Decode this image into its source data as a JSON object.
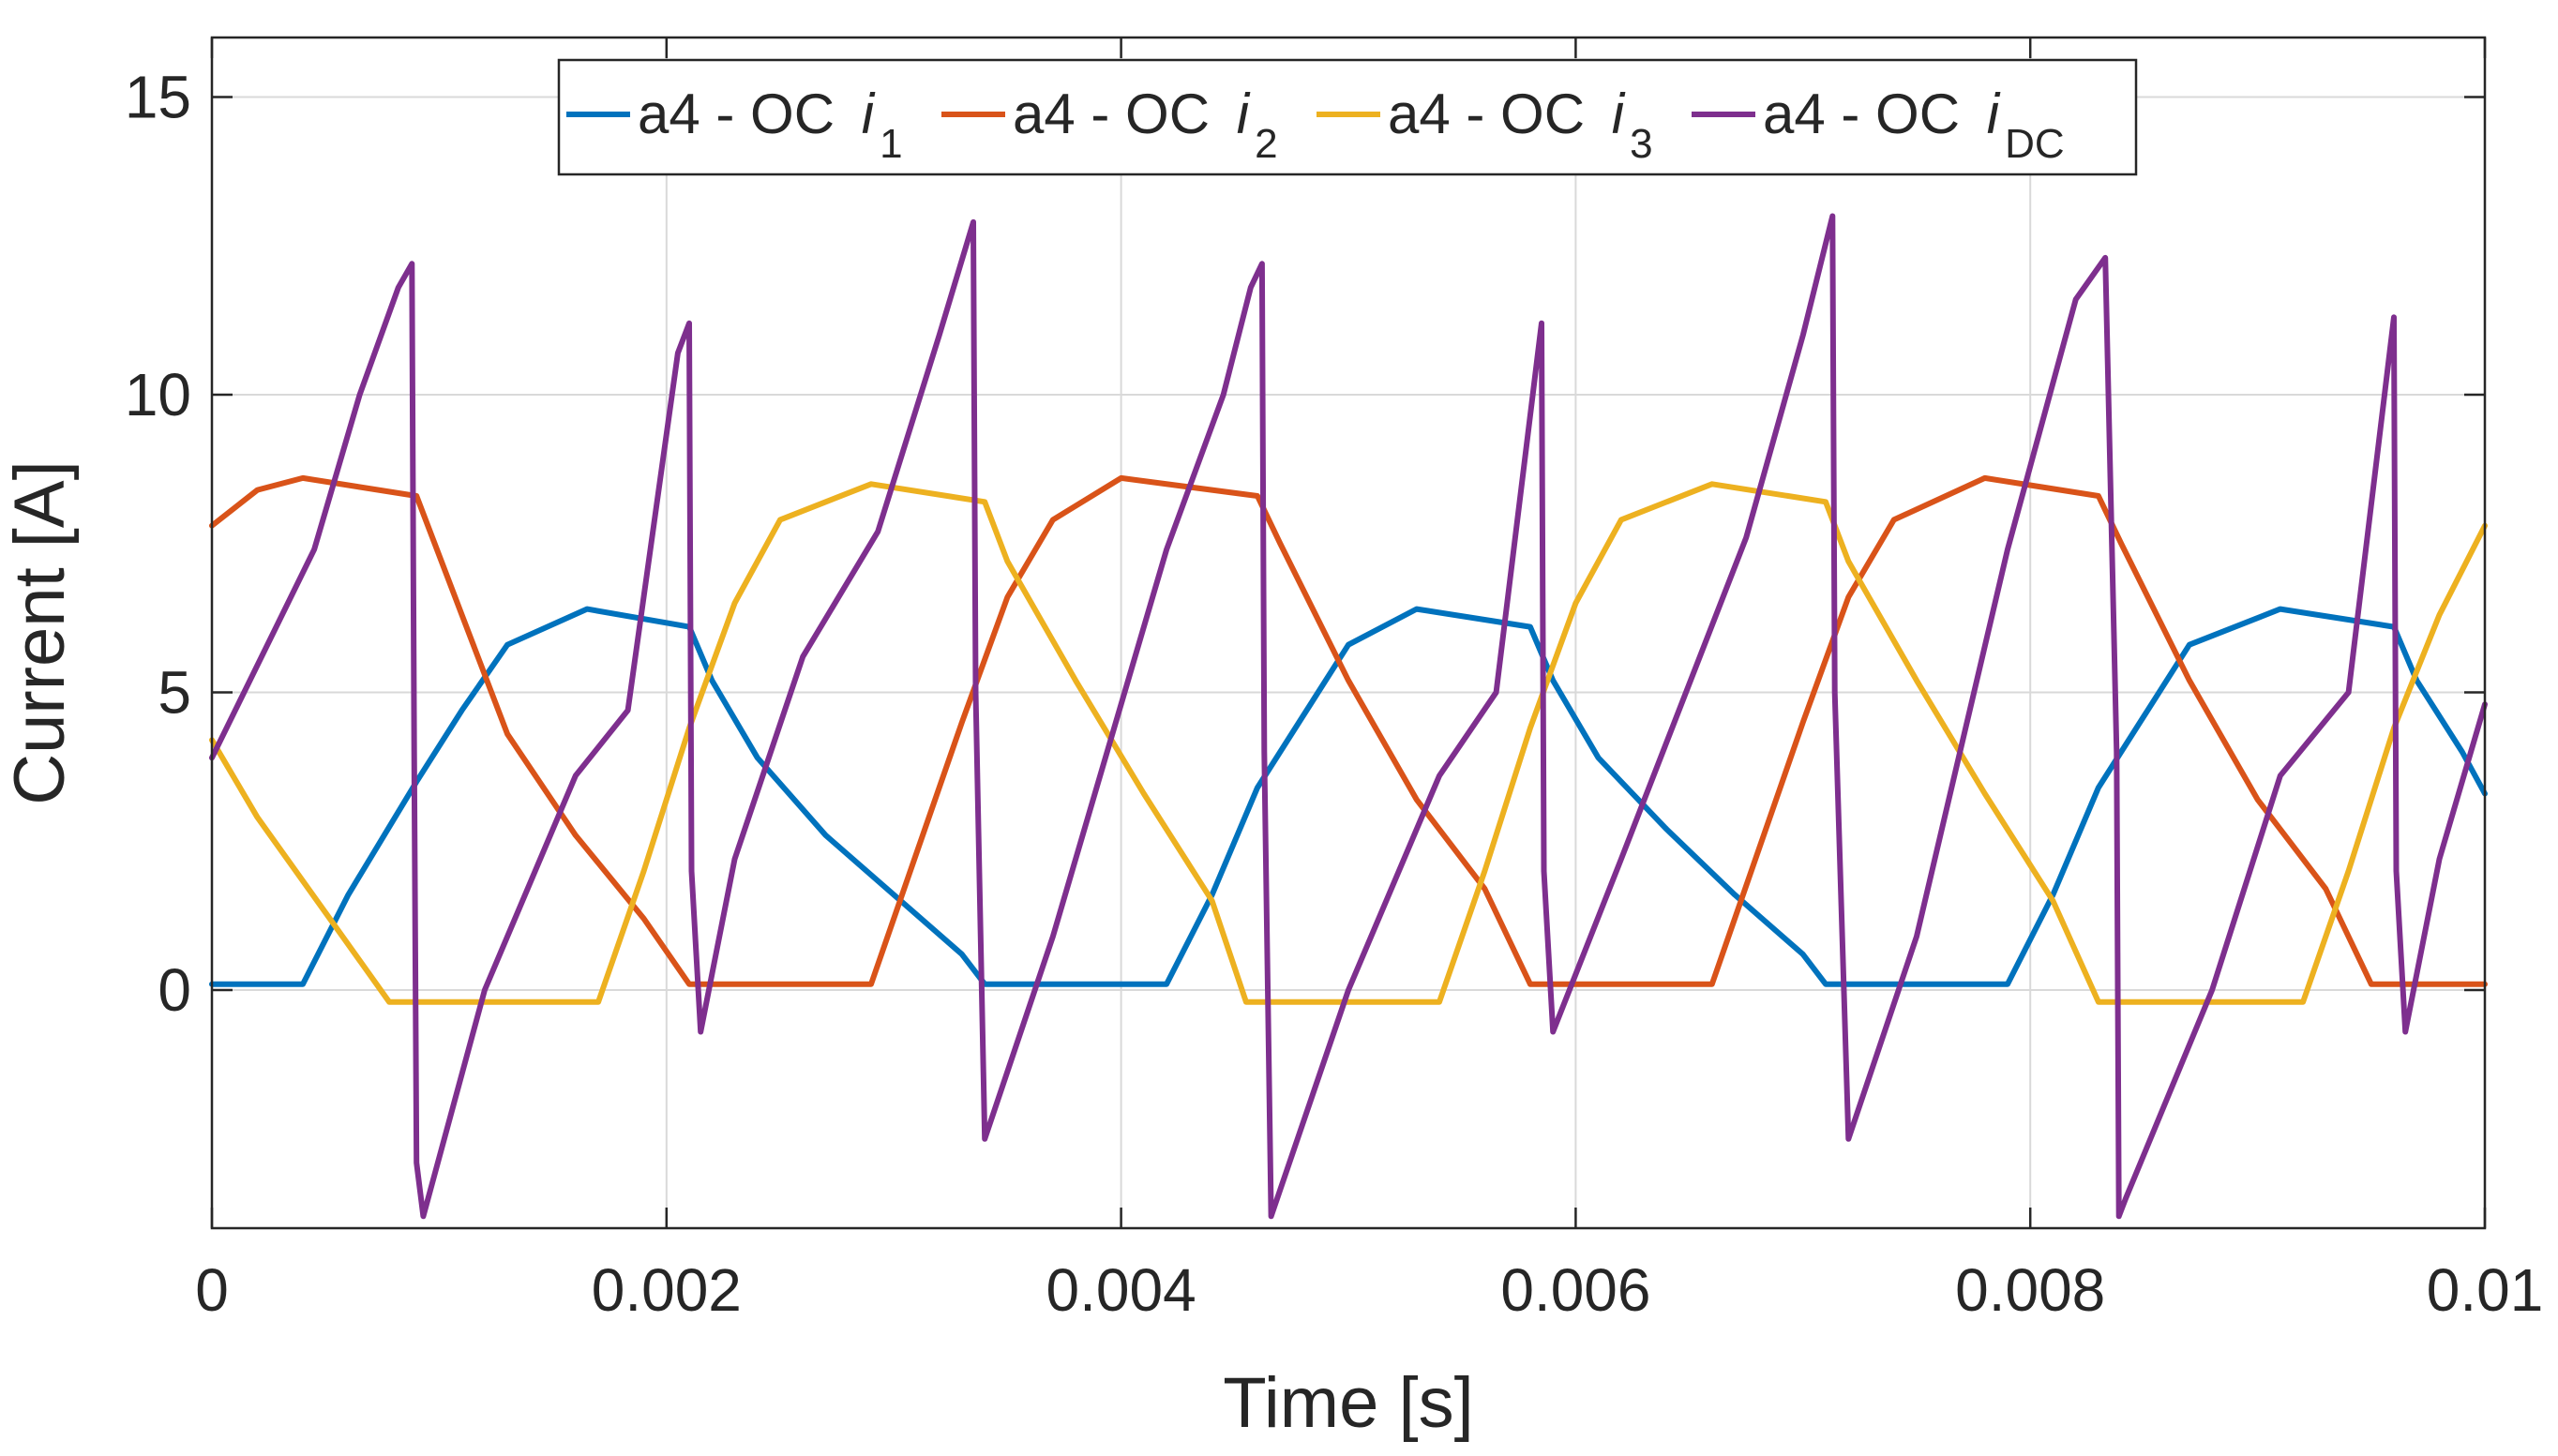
{
  "chart_data": {
    "type": "line",
    "title": "",
    "xlabel": "Time  [s]",
    "ylabel": "Current [A]",
    "xlim": [
      0,
      0.01
    ],
    "ylim": [
      -4,
      16
    ],
    "grid": true,
    "legend_location": "top-center",
    "x_ticks": [
      0,
      0.002,
      0.004,
      0.006,
      0.008,
      0.01
    ],
    "x_tick_labels": [
      "0",
      "0.002",
      "0.004",
      "0.006",
      "0.008",
      "0.01"
    ],
    "y_ticks": [
      0,
      5,
      10,
      15
    ],
    "y_tick_labels": [
      "0",
      "5",
      "10",
      "15"
    ],
    "series": [
      {
        "name": "a4 - OC i1",
        "legend_prefix": "a4 - OC ",
        "legend_var": "i",
        "legend_sub": "1",
        "color": "#0072BD",
        "x": [
          0,
          0.0004,
          0.0006,
          0.0009,
          0.0011,
          0.0013,
          0.00165,
          0.0021,
          0.0022,
          0.0024,
          0.0027,
          0.003,
          0.0033,
          0.0034,
          0.0042,
          0.0044,
          0.0046,
          0.0048,
          0.005,
          0.0053,
          0.0058,
          0.0059,
          0.0061,
          0.0064,
          0.0067,
          0.007,
          0.0071,
          0.0079,
          0.0081,
          0.0083,
          0.0085,
          0.0087,
          0.0091,
          0.0096,
          0.0097,
          0.0099,
          0.01
        ],
        "values": [
          0.1,
          0.1,
          1.6,
          3.5,
          4.7,
          5.8,
          6.4,
          6.1,
          5.2,
          3.9,
          2.6,
          1.6,
          0.6,
          0.1,
          0.1,
          1.6,
          3.4,
          4.6,
          5.8,
          6.4,
          6.1,
          5.2,
          3.9,
          2.7,
          1.6,
          0.6,
          0.1,
          0.1,
          1.6,
          3.4,
          4.6,
          5.8,
          6.4,
          6.1,
          5.2,
          4.0,
          3.3
        ]
      },
      {
        "name": "a4 - OC i2",
        "legend_prefix": "a4 - OC ",
        "legend_var": "i",
        "legend_sub": "2",
        "color": "#D95319",
        "x": [
          0,
          0.0002,
          0.0004,
          0.0009,
          0.0011,
          0.0013,
          0.0016,
          0.0019,
          0.0021,
          0.0029,
          0.0031,
          0.0033,
          0.0035,
          0.0037,
          0.004,
          0.0046,
          0.0047,
          0.005,
          0.0053,
          0.0056,
          0.0058,
          0.0066,
          0.0068,
          0.007,
          0.0072,
          0.0074,
          0.0078,
          0.0083,
          0.0084,
          0.0087,
          0.009,
          0.0093,
          0.0095,
          0.01
        ],
        "values": [
          7.8,
          8.4,
          8.6,
          8.3,
          6.3,
          4.3,
          2.6,
          1.2,
          0.1,
          0.1,
          2.3,
          4.5,
          6.6,
          7.9,
          8.6,
          8.3,
          7.5,
          5.2,
          3.2,
          1.7,
          0.1,
          0.1,
          2.3,
          4.5,
          6.6,
          7.9,
          8.6,
          8.3,
          7.5,
          5.2,
          3.2,
          1.7,
          0.1,
          0.1
        ]
      },
      {
        "name": "a4 - OC i3",
        "legend_prefix": "a4 - OC ",
        "legend_var": "i",
        "legend_sub": "3",
        "color": "#EDB120",
        "x": [
          0,
          0.0002,
          0.0005,
          0.00078,
          0.0017,
          0.0019,
          0.0021,
          0.0023,
          0.0025,
          0.0029,
          0.0034,
          0.0035,
          0.0038,
          0.0041,
          0.0044,
          0.00455,
          0.0054,
          0.0056,
          0.0058,
          0.006,
          0.0062,
          0.0066,
          0.0071,
          0.0072,
          0.0075,
          0.0078,
          0.0081,
          0.0083,
          0.0092,
          0.0094,
          0.0096,
          0.0098,
          0.01
        ],
        "values": [
          4.2,
          2.9,
          1.3,
          -0.2,
          -0.2,
          2.0,
          4.4,
          6.5,
          7.9,
          8.5,
          8.2,
          7.2,
          5.2,
          3.3,
          1.5,
          -0.2,
          -0.2,
          2.0,
          4.4,
          6.5,
          7.9,
          8.5,
          8.2,
          7.2,
          5.2,
          3.3,
          1.5,
          -0.2,
          -0.2,
          2.0,
          4.4,
          6.3,
          7.8
        ]
      },
      {
        "name": "a4 - OC iDC",
        "legend_prefix": "a4 - OC ",
        "legend_var": "i",
        "legend_sub": "DC",
        "color": "#7E2F8E",
        "x": [
          0,
          0.00045,
          0.00065,
          0.00082,
          0.00088,
          0.00089,
          0.0009,
          0.00093,
          0.0012,
          0.0016,
          0.00183,
          0.00205,
          0.0021,
          0.00211,
          0.00215,
          0.0023,
          0.0026,
          0.00293,
          0.0032,
          0.00335,
          0.00336,
          0.0034,
          0.0037,
          0.0042,
          0.00445,
          0.00457,
          0.00462,
          0.00463,
          0.00466,
          0.005,
          0.0054,
          0.00565,
          0.00585,
          0.00586,
          0.0059,
          0.0062,
          0.00675,
          0.007,
          0.00713,
          0.00714,
          0.0072,
          0.0075,
          0.0079,
          0.0082,
          0.00833,
          0.00838,
          0.00839,
          0.00842,
          0.0088,
          0.0091,
          0.0094,
          0.0096,
          0.00961,
          0.00965,
          0.0098,
          0.01
        ],
        "values": [
          3.9,
          7.4,
          10.0,
          11.8,
          12.2,
          4.0,
          -2.9,
          -3.8,
          0.0,
          3.6,
          4.7,
          10.7,
          11.2,
          2.0,
          -0.7,
          2.2,
          5.6,
          7.7,
          11.0,
          12.9,
          5.0,
          -2.5,
          0.9,
          7.4,
          10.0,
          11.8,
          12.2,
          4.0,
          -3.8,
          0.0,
          3.6,
          5.0,
          11.2,
          2.0,
          -0.7,
          2.2,
          7.6,
          11.0,
          13.0,
          5.0,
          -2.5,
          0.9,
          7.4,
          11.6,
          12.3,
          4.0,
          -3.8,
          -3.5,
          0.0,
          3.6,
          5.0,
          11.3,
          2.0,
          -0.7,
          2.2,
          4.8
        ]
      }
    ]
  }
}
